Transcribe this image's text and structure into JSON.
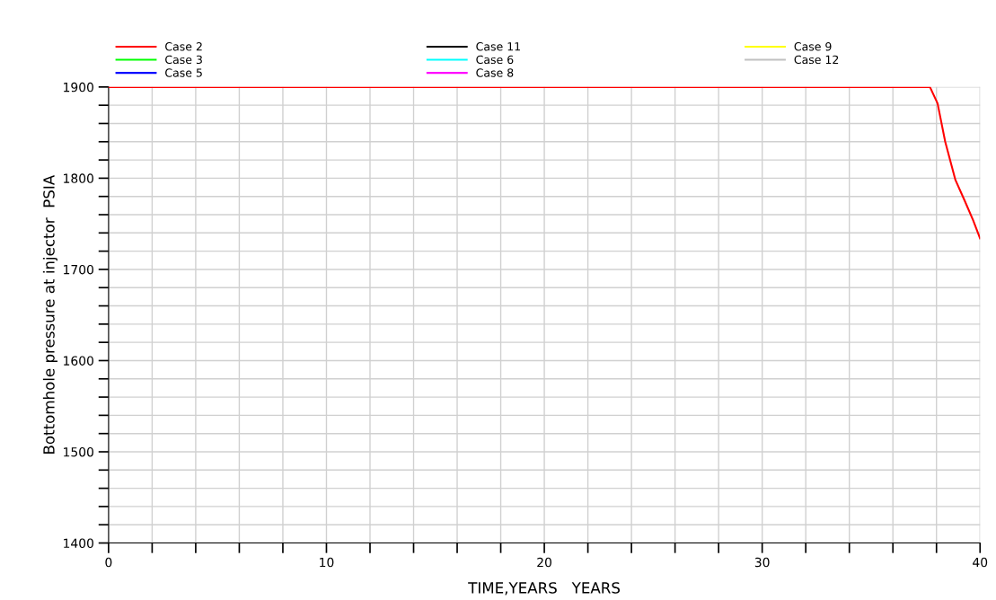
{
  "chart_data": {
    "type": "line",
    "xlabel": "TIME,YEARS   YEARS",
    "ylabel": "Bottomhole pressure at injector  PSIA",
    "x": [
      0,
      10,
      20,
      30,
      37.7,
      38.05,
      38.4,
      38.87,
      39.3,
      39.68,
      40
    ],
    "series": [
      {
        "name": "Case 2",
        "color": "#ff0000",
        "values": [
          1900,
          1900,
          1900,
          1900,
          1900,
          1882,
          1840,
          1798,
          1775,
          1754,
          1734
        ]
      },
      {
        "name": "Case 3",
        "color": "#00ff00",
        "values": [
          null,
          null,
          null,
          null,
          null,
          null,
          null,
          null,
          null,
          null,
          null
        ]
      },
      {
        "name": "Case 5",
        "color": "#0000ff",
        "values": [
          null,
          null,
          null,
          null,
          null,
          null,
          null,
          null,
          null,
          null,
          null
        ]
      },
      {
        "name": "Case 11",
        "color": "#000000",
        "values": [
          null,
          null,
          null,
          null,
          null,
          null,
          null,
          null,
          null,
          null,
          null
        ]
      },
      {
        "name": "Case 6",
        "color": "#00ffff",
        "values": [
          null,
          null,
          null,
          null,
          null,
          null,
          null,
          null,
          null,
          null,
          null
        ]
      },
      {
        "name": "Case 8",
        "color": "#ff00ff",
        "values": [
          null,
          null,
          null,
          null,
          null,
          null,
          null,
          null,
          null,
          null,
          null
        ]
      },
      {
        "name": "Case 9",
        "color": "#ffff00",
        "values": [
          null,
          null,
          null,
          null,
          null,
          null,
          null,
          null,
          null,
          null,
          null
        ]
      },
      {
        "name": "Case 12",
        "color": "#c0c0c0",
        "values": [
          null,
          null,
          null,
          null,
          null,
          null,
          null,
          null,
          null,
          null,
          null
        ]
      }
    ],
    "xlim": [
      0,
      40
    ],
    "xticks": [
      0,
      {
        "value": 2,
        "label": null
      },
      {
        "value": 4,
        "label": null
      },
      {
        "value": 6,
        "label": null
      },
      {
        "value": 8,
        "label": null
      },
      10,
      {
        "value": 12,
        "label": null
      },
      {
        "value": 14,
        "label": null
      },
      {
        "value": 16,
        "label": null
      },
      {
        "value": 18,
        "label": null
      },
      20,
      {
        "value": 22,
        "label": null
      },
      {
        "value": 24,
        "label": null
      },
      {
        "value": 26,
        "label": null
      },
      {
        "value": 28,
        "label": null
      },
      30,
      {
        "value": 32,
        "label": null
      },
      {
        "value": 34,
        "label": null
      },
      {
        "value": 36,
        "label": null
      },
      {
        "value": 38,
        "label": null
      },
      40
    ],
    "ylim": [
      1400,
      1900
    ],
    "yticks": [
      1400,
      {
        "value": 1420,
        "label": null
      },
      {
        "value": 1440,
        "label": null
      },
      {
        "value": 1460,
        "label": null
      },
      {
        "value": 1480,
        "label": null
      },
      1500,
      {
        "value": 1520,
        "label": null
      },
      {
        "value": 1540,
        "label": null
      },
      {
        "value": 1560,
        "label": null
      },
      {
        "value": 1580,
        "label": null
      },
      1600,
      {
        "value": 1620,
        "label": null
      },
      {
        "value": 1640,
        "label": null
      },
      {
        "value": 1660,
        "label": null
      },
      {
        "value": 1680,
        "label": null
      },
      1700,
      {
        "value": 1720,
        "label": null
      },
      {
        "value": 1740,
        "label": null
      },
      {
        "value": 1760,
        "label": null
      },
      {
        "value": 1780,
        "label": null
      },
      1800,
      {
        "value": 1820,
        "label": null
      },
      {
        "value": 1840,
        "label": null
      },
      {
        "value": 1860,
        "label": null
      },
      {
        "value": 1880,
        "label": null
      },
      1900
    ],
    "grid": true,
    "legend": "top",
    "marker": "none",
    "line_style": "solid"
  }
}
